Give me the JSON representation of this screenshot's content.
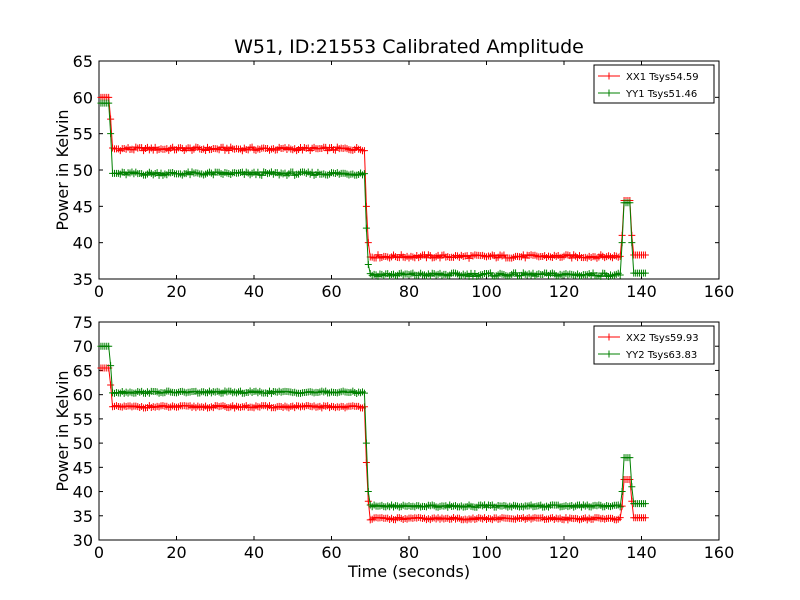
{
  "figure": {
    "title": "W51, ID:21553 Calibrated Amplitude",
    "xlabel": "Time (seconds)"
  },
  "colors": {
    "xx": "#ff0000",
    "yy": "#008000"
  },
  "chart_data": [
    {
      "type": "line",
      "title": "W51, ID:21553 Calibrated Amplitude",
      "xlabel": "",
      "ylabel": "Power in Kelvin",
      "xlim": [
        0,
        160
      ],
      "ylim": [
        35,
        65
      ],
      "xticks": [
        0,
        20,
        40,
        60,
        80,
        100,
        120,
        140,
        160
      ],
      "yticks": [
        35,
        40,
        45,
        50,
        55,
        60,
        65
      ],
      "legend_position": "top-right",
      "marker": "+",
      "series": [
        {
          "name": "XX1 Tsys54.59",
          "color": "#ff0000",
          "segments": [
            {
              "x_start": 0.5,
              "x_end": 2.5,
              "value": 60.0
            },
            {
              "x_start": 3,
              "x_end": 3,
              "value": 57.0
            },
            {
              "x_start": 3.5,
              "x_end": 68.5,
              "value": 52.9
            },
            {
              "x_start": 69,
              "x_end": 69,
              "value": 45.0
            },
            {
              "x_start": 69.5,
              "x_end": 69.5,
              "value": 40.0
            },
            {
              "x_start": 70,
              "x_end": 134.5,
              "value": 38.1
            },
            {
              "x_start": 135,
              "x_end": 135,
              "value": 41.0
            },
            {
              "x_start": 135.5,
              "x_end": 137,
              "value": 45.8
            },
            {
              "x_start": 137.5,
              "x_end": 137.5,
              "value": 41.0
            },
            {
              "x_start": 138,
              "x_end": 141,
              "value": 38.3
            }
          ]
        },
        {
          "name": "YY1 Tsys51.46",
          "color": "#008000",
          "segments": [
            {
              "x_start": 0.5,
              "x_end": 2.5,
              "value": 59.2
            },
            {
              "x_start": 3,
              "x_end": 3,
              "value": 55.0
            },
            {
              "x_start": 3.5,
              "x_end": 68.5,
              "value": 49.5
            },
            {
              "x_start": 69,
              "x_end": 69,
              "value": 42.0
            },
            {
              "x_start": 69.5,
              "x_end": 69.5,
              "value": 37.0
            },
            {
              "x_start": 70,
              "x_end": 134.5,
              "value": 35.6
            },
            {
              "x_start": 135,
              "x_end": 135,
              "value": 40.0
            },
            {
              "x_start": 135.5,
              "x_end": 137,
              "value": 45.5
            },
            {
              "x_start": 137.5,
              "x_end": 137.5,
              "value": 40.0
            },
            {
              "x_start": 138,
              "x_end": 141,
              "value": 35.8
            }
          ]
        }
      ]
    },
    {
      "type": "line",
      "title": "",
      "xlabel": "Time (seconds)",
      "ylabel": "Power in Kelvin",
      "xlim": [
        0,
        160
      ],
      "ylim": [
        30,
        75
      ],
      "xticks": [
        0,
        20,
        40,
        60,
        80,
        100,
        120,
        140,
        160
      ],
      "yticks": [
        30,
        35,
        40,
        45,
        50,
        55,
        60,
        65,
        70,
        75
      ],
      "legend_position": "top-right",
      "marker": "+",
      "series": [
        {
          "name": "XX2 Tsys59.93",
          "color": "#ff0000",
          "segments": [
            {
              "x_start": 0.5,
              "x_end": 2.5,
              "value": 65.5
            },
            {
              "x_start": 3,
              "x_end": 3,
              "value": 62.0
            },
            {
              "x_start": 3.5,
              "x_end": 68.5,
              "value": 57.5
            },
            {
              "x_start": 69,
              "x_end": 69,
              "value": 46.0
            },
            {
              "x_start": 69.5,
              "x_end": 69.5,
              "value": 38.0
            },
            {
              "x_start": 70,
              "x_end": 134.5,
              "value": 34.4
            },
            {
              "x_start": 135,
              "x_end": 135,
              "value": 37.0
            },
            {
              "x_start": 135.5,
              "x_end": 137,
              "value": 42.5
            },
            {
              "x_start": 137.5,
              "x_end": 137.5,
              "value": 38.0
            },
            {
              "x_start": 138,
              "x_end": 141,
              "value": 34.6
            }
          ]
        },
        {
          "name": "YY2 Tsys63.83",
          "color": "#008000",
          "segments": [
            {
              "x_start": 0.5,
              "x_end": 2.5,
              "value": 70.0
            },
            {
              "x_start": 3,
              "x_end": 3,
              "value": 66.0
            },
            {
              "x_start": 3.5,
              "x_end": 68.5,
              "value": 60.5
            },
            {
              "x_start": 69,
              "x_end": 69,
              "value": 50.0
            },
            {
              "x_start": 69.5,
              "x_end": 69.5,
              "value": 40.0
            },
            {
              "x_start": 70,
              "x_end": 134.5,
              "value": 37.0
            },
            {
              "x_start": 135,
              "x_end": 135,
              "value": 40.0
            },
            {
              "x_start": 135.5,
              "x_end": 137,
              "value": 47.0
            },
            {
              "x_start": 137.5,
              "x_end": 137.5,
              "value": 41.0
            },
            {
              "x_start": 138,
              "x_end": 141,
              "value": 37.5
            }
          ]
        }
      ]
    }
  ]
}
